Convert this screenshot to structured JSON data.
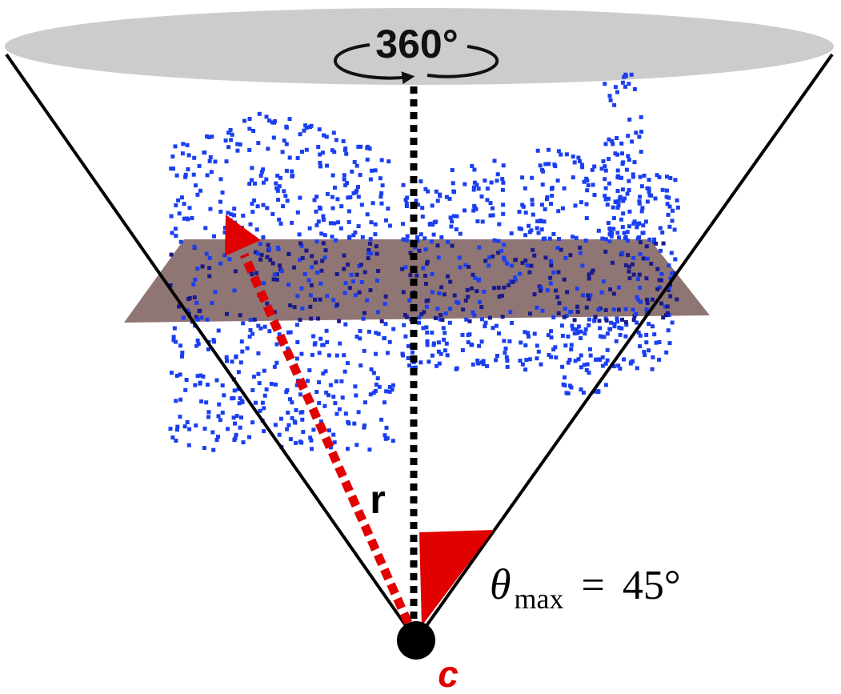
{
  "diagram": {
    "rotation_label": "360°",
    "radius_label": "r",
    "center_label": "c",
    "angle": {
      "symbol": "θ",
      "subscript": "max",
      "equals": "=",
      "value": "45°"
    }
  },
  "colors": {
    "background": "#ffffff",
    "cone_lines": "#000000",
    "cap": "#cccccc",
    "plane": "#8a6e6e",
    "points": "#1a3ff0",
    "points_dark": "#1a1a8c",
    "radius_arrow": "#e00000",
    "angle_wedge": "#e00000",
    "center_dot": "#000000",
    "center_label": "#e00000"
  },
  "icons": {
    "rotation": "circular-arrow-icon"
  }
}
